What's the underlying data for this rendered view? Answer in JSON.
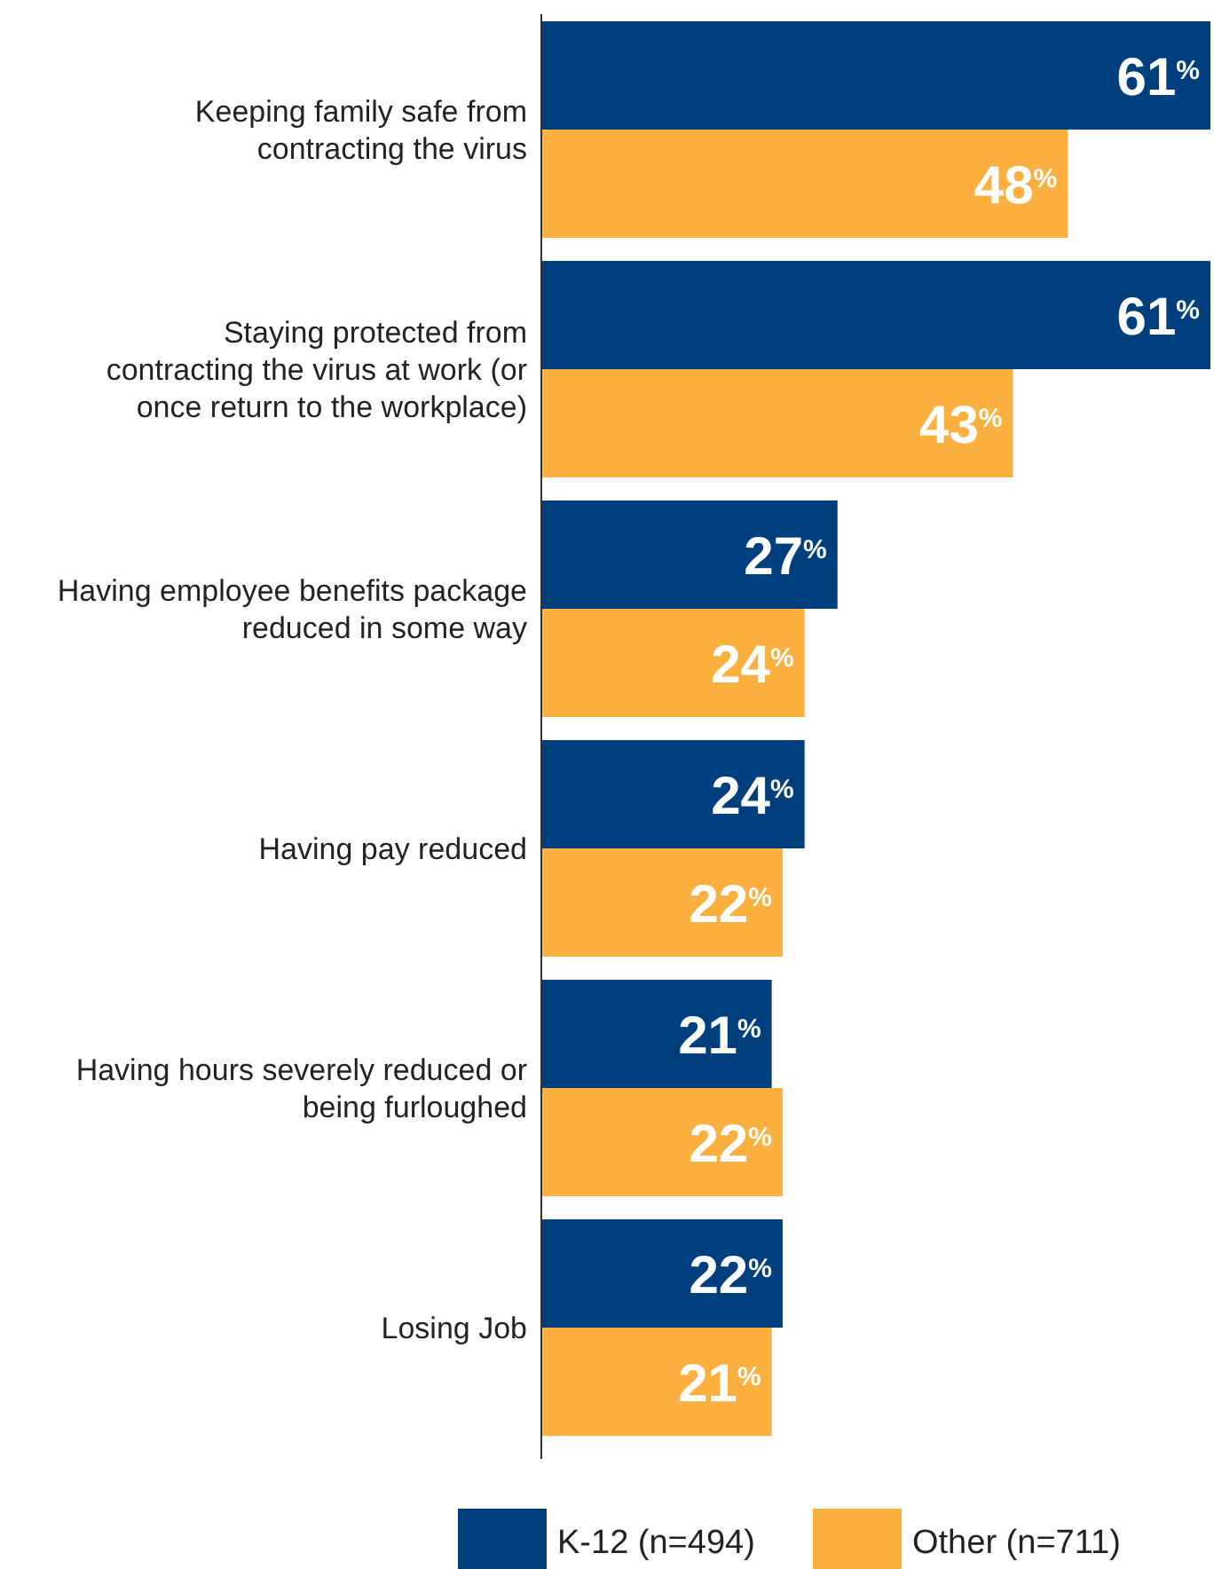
{
  "chart_data": {
    "type": "bar",
    "orientation": "horizontal",
    "legend": "bottom",
    "categories": [
      "Keeping family safe from contracting the virus",
      "Staying protected from contracting the virus at work (or once return to the workplace)",
      "Having employee benefits package reduced in some way",
      "Having pay reduced",
      "Having hours severely reduced or being furloughed",
      "Losing Job"
    ],
    "series": [
      {
        "name": "K-12 (n=494)",
        "color": "#003f7d",
        "values": [
          61,
          61,
          27,
          24,
          21,
          22
        ],
        "value_labels": [
          "61$^{%}$",
          "61$^{%}$",
          "27$^{%}$",
          "24$^{%}$",
          "21$^{%}$",
          "22$^{%}$"
        ]
      },
      {
        "name": "Other (n=711)",
        "color": "#fbb040",
        "values": [
          48,
          43,
          24,
          22,
          22,
          21
        ],
        "value_labels": [
          "48$^{%}$",
          "43$^{%}$",
          "24$^{%}$",
          "22$^{%}$",
          "22$^{%}$",
          "21$^{%}$"
        ]
      }
    ]
  }
}
